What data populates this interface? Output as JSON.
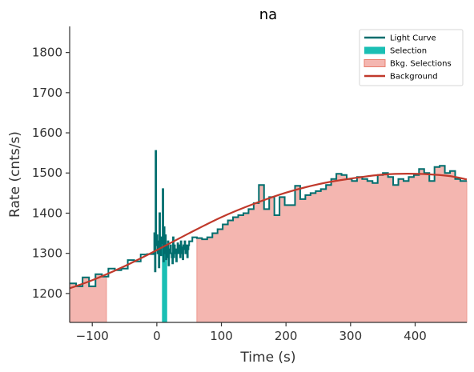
{
  "chart_data": {
    "type": "line",
    "title": "na",
    "xlabel": "Time (s)",
    "ylabel": "Rate (cnts/s)",
    "xlim": [
      -135,
      480
    ],
    "ylim": [
      1128,
      1865
    ],
    "xticks": [
      -100,
      0,
      100,
      200,
      300,
      400
    ],
    "yticks": [
      1200,
      1300,
      1400,
      1500,
      1600,
      1700,
      1800
    ],
    "xtick_labels": [
      "−100",
      "0",
      "100",
      "200",
      "300",
      "400"
    ],
    "ytick_labels": [
      "1200",
      "1300",
      "1400",
      "1500",
      "1600",
      "1700",
      "1800"
    ],
    "legend_position": "top-right",
    "colors": {
      "light_curve": "#006e6e",
      "selection": "#1abfb4",
      "bkg_selection": "#f4b6b0",
      "background": "#c0392b"
    },
    "selection_interval": [
      8,
      16
    ],
    "bkg_intervals": [
      [
        -135,
        -78
      ],
      [
        62,
        480
      ]
    ],
    "background_model": {
      "x": [
        -135,
        -100,
        -50,
        0,
        50,
        100,
        150,
        200,
        250,
        300,
        350,
        400,
        450,
        480
      ],
      "y": [
        1213,
        1233,
        1268,
        1308,
        1350,
        1390,
        1423,
        1451,
        1472,
        1486,
        1496,
        1498,
        1493,
        1484
      ]
    },
    "light_curve": {
      "edges": [
        -135,
        -125,
        -115,
        -105,
        -95,
        -85,
        -75,
        -65,
        -55,
        -45,
        -35,
        -25,
        -15,
        -5,
        -4,
        -3,
        -2,
        -1,
        0,
        1,
        2,
        3,
        4,
        5,
        6,
        7,
        8,
        9,
        10,
        11,
        12,
        13,
        14,
        15,
        16,
        17,
        18,
        19,
        20,
        21,
        22,
        23,
        24,
        25,
        26,
        27,
        28,
        29,
        30,
        31,
        32,
        33,
        34,
        35,
        36,
        37,
        38,
        39,
        40,
        41,
        42,
        43,
        44,
        45,
        46,
        47,
        48,
        49,
        50,
        55,
        62,
        70,
        78,
        86,
        94,
        102,
        110,
        118,
        126,
        134,
        142,
        150,
        158,
        166,
        174,
        182,
        190,
        198,
        206,
        214,
        222,
        230,
        238,
        246,
        254,
        262,
        270,
        278,
        286,
        294,
        302,
        310,
        318,
        326,
        334,
        342,
        350,
        358,
        366,
        374,
        382,
        390,
        398,
        406,
        414,
        422,
        430,
        438,
        446,
        454,
        462,
        470,
        480
      ],
      "values": [
        1225,
        1218,
        1240,
        1218,
        1248,
        1242,
        1262,
        1258,
        1262,
        1283,
        1280,
        1297,
        1298,
        1300,
        1350,
        1255,
        1555,
        1320,
        1345,
        1300,
        1330,
        1265,
        1400,
        1310,
        1295,
        1340,
        1325,
        1460,
        1280,
        1365,
        1300,
        1345,
        1285,
        1320,
        1290,
        1330,
        1270,
        1310,
        1300,
        1320,
        1300,
        1290,
        1275,
        1340,
        1290,
        1320,
        1310,
        1300,
        1280,
        1310,
        1325,
        1300,
        1320,
        1310,
        1290,
        1330,
        1315,
        1300,
        1285,
        1320,
        1310,
        1330,
        1300,
        1315,
        1320,
        1290,
        1310,
        1320,
        1330,
        1340,
        1338,
        1335,
        1340,
        1350,
        1360,
        1372,
        1382,
        1390,
        1395,
        1400,
        1410,
        1425,
        1470,
        1410,
        1440,
        1395,
        1440,
        1420,
        1420,
        1468,
        1435,
        1445,
        1450,
        1455,
        1460,
        1470,
        1485,
        1498,
        1495,
        1485,
        1480,
        1490,
        1485,
        1480,
        1475,
        1495,
        1500,
        1490,
        1470,
        1485,
        1480,
        1490,
        1495,
        1510,
        1500,
        1480,
        1515,
        1518,
        1500,
        1505,
        1485,
        1480
      ]
    },
    "legend": [
      {
        "label": "Light Curve",
        "kind": "line",
        "color": "#006e6e"
      },
      {
        "label": "Selection",
        "kind": "patch",
        "color": "#1abfb4"
      },
      {
        "label": "Bkg. Selections",
        "kind": "patch",
        "color": "#f4b6b0",
        "edge": "#e8806f"
      },
      {
        "label": "Background",
        "kind": "line",
        "color": "#c0392b"
      }
    ]
  }
}
